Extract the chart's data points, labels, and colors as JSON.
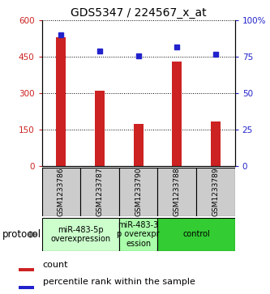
{
  "title": "GDS5347 / 224567_x_at",
  "samples": [
    "GSM1233786",
    "GSM1233787",
    "GSM1233790",
    "GSM1233788",
    "GSM1233789"
  ],
  "counts": [
    530,
    310,
    175,
    430,
    185
  ],
  "percentiles": [
    90,
    79,
    76,
    82,
    77
  ],
  "left_yticks": [
    0,
    150,
    300,
    450,
    600
  ],
  "right_yticks": [
    0,
    25,
    50,
    75,
    100
  ],
  "right_ylabels": [
    "0",
    "25",
    "50",
    "75",
    "100%"
  ],
  "ylim_left": [
    0,
    600
  ],
  "ylim_right": [
    0,
    100
  ],
  "bar_color": "#cc2222",
  "dot_color": "#2222cc",
  "groups": [
    {
      "label": "miR-483-5p\noverexpression",
      "indices": [
        0,
        1
      ],
      "color": "#ccffcc"
    },
    {
      "label": "miR-483-3\np overexpr\nession",
      "indices": [
        2
      ],
      "color": "#aaffaa"
    },
    {
      "label": "control",
      "indices": [
        3,
        4
      ],
      "color": "#33cc33"
    }
  ],
  "sample_box_color": "#cccccc",
  "protocol_label": "protocol",
  "legend_count_label": "count",
  "legend_percentile_label": "percentile rank within the sample",
  "title_fontsize": 10,
  "tick_fontsize": 7.5,
  "sample_fontsize": 6.5,
  "group_fontsize": 7,
  "legend_fontsize": 8
}
